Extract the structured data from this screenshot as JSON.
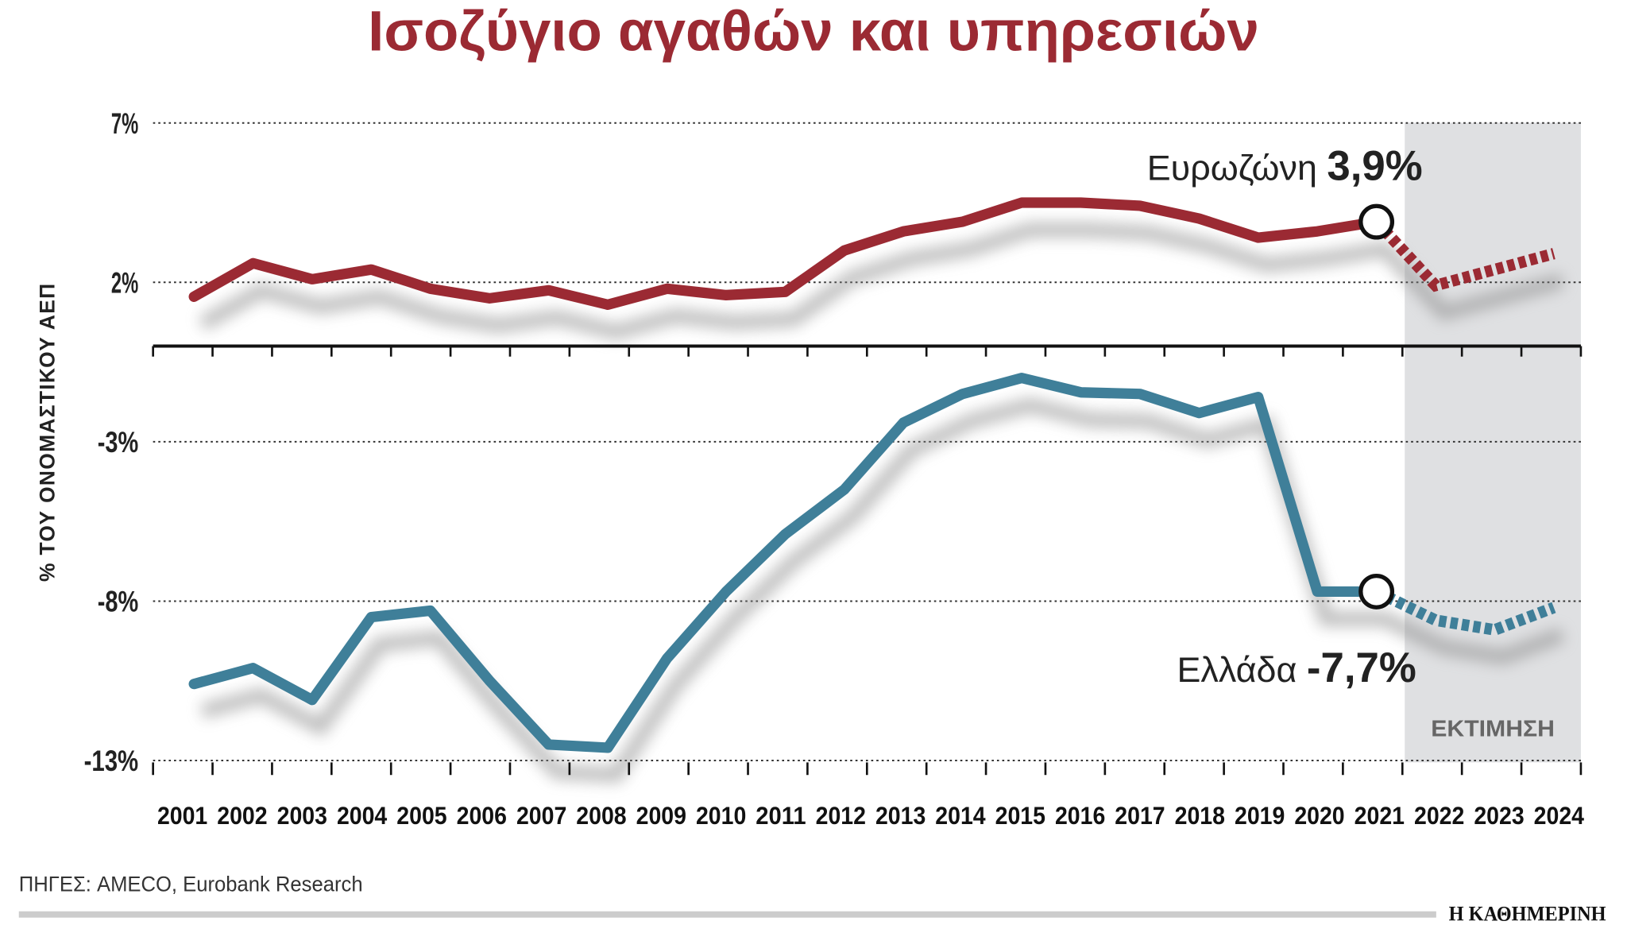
{
  "chart_data": {
    "type": "line",
    "title": "Ισοζύγιο αγαθών και υπηρεσιών",
    "ylabel": "% ΤΟΥ ΟΝΟΜΑΣΤΙΚΟΥ ΑΕΠ",
    "xlabel": "",
    "ylim": [
      -13,
      7
    ],
    "yticks": [
      7,
      2,
      -3,
      -8,
      -13
    ],
    "ytick_labels": [
      "7%",
      "2%",
      "-3%",
      "-8%",
      "-13%"
    ],
    "grid": "horizontal dotted",
    "categories": [
      "2001",
      "2002",
      "2003",
      "2004",
      "2005",
      "2006",
      "2007",
      "2008",
      "2009",
      "2010",
      "2011",
      "2012",
      "2013",
      "2014",
      "2015",
      "2016",
      "2017",
      "2018",
      "2019",
      "2020",
      "2021",
      "2022",
      "2023",
      "2024"
    ],
    "estimate_label": "ΕΚΤΙΜΗΣΗ",
    "estimate_from": "2022",
    "series": [
      {
        "name": "Ευρωζώνη",
        "color": "#9b2a33",
        "highlight_year": "2021",
        "highlight_label": "3,9%",
        "values": [
          1.55,
          2.6,
          2.1,
          2.4,
          1.8,
          1.5,
          1.75,
          1.3,
          1.8,
          1.6,
          1.7,
          3.0,
          3.6,
          3.9,
          4.5,
          4.5,
          4.4,
          4.0,
          3.4,
          3.6,
          3.9,
          1.9,
          2.4,
          2.9
        ]
      },
      {
        "name": "Ελλάδα",
        "color": "#3f7f99",
        "highlight_year": "2021",
        "highlight_label": "-7,7%",
        "values": [
          -10.6,
          -10.1,
          -11.1,
          -8.5,
          -8.3,
          -10.5,
          -12.5,
          -12.6,
          -9.8,
          -7.7,
          -5.9,
          -4.5,
          -2.4,
          -1.5,
          -1.0,
          -1.45,
          -1.5,
          -2.1,
          -1.6,
          -7.7,
          -7.7,
          -8.6,
          -8.9,
          -8.2
        ]
      }
    ]
  },
  "footer": {
    "source": "ΠΗΓΕΣ: AMECO, Eurobank Research",
    "publisher": "Η ΚΑΘΗΜΕΡΙΝΗ"
  },
  "colors": {
    "title": "#9b2a33",
    "estimate_band": "#dfe0e2",
    "shadow": "#9a9a9a"
  }
}
